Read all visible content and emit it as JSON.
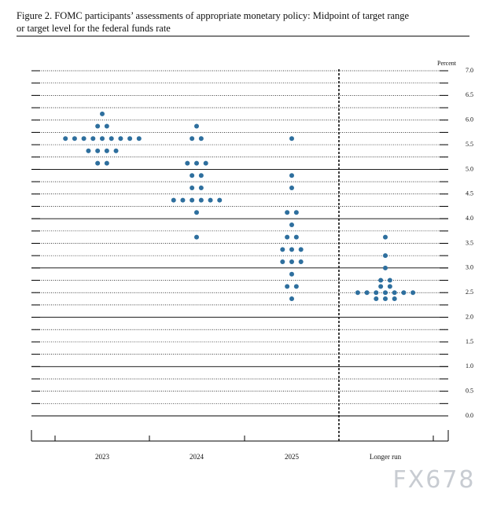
{
  "chart_data": {
    "type": "dot-plot",
    "title_lines": [
      "Figure 2.  FOMC participants’ assessments of appropriate monetary policy:  Midpoint of target range",
      "or target level for the federal funds rate"
    ],
    "y_unit_label": "Percent",
    "categories": [
      "2023",
      "2024",
      "2025",
      "Longer run"
    ],
    "values": [
      [
        6.125,
        5.875,
        5.875,
        5.625,
        5.625,
        5.625,
        5.625,
        5.625,
        5.625,
        5.625,
        5.625,
        5.625,
        5.375,
        5.375,
        5.375,
        5.375,
        5.125,
        5.125
      ],
      [
        5.875,
        5.625,
        5.625,
        5.125,
        5.125,
        5.125,
        4.875,
        4.875,
        4.625,
        4.625,
        4.375,
        4.375,
        4.375,
        4.375,
        4.375,
        4.375,
        4.125,
        3.625
      ],
      [
        5.625,
        4.875,
        4.625,
        4.125,
        4.125,
        3.875,
        3.625,
        3.625,
        3.375,
        3.375,
        3.375,
        3.125,
        3.125,
        3.125,
        2.875,
        2.625,
        2.625,
        2.375
      ],
      [
        3.625,
        3.25,
        3.0,
        2.75,
        2.75,
        2.625,
        2.625,
        2.5,
        2.5,
        2.5,
        2.5,
        2.5,
        2.5,
        2.5,
        2.375,
        2.375,
        2.375
      ]
    ],
    "color": "#2e6f9e",
    "ylim": [
      0,
      7
    ],
    "yticks": [
      {
        "value": 0,
        "label": "0.0"
      },
      {
        "value": 0.5,
        "label": "0.5"
      },
      {
        "value": 1,
        "label": "1.0"
      },
      {
        "value": 1.5,
        "label": "1.5"
      },
      {
        "value": 2,
        "label": "2.0"
      },
      {
        "value": 2.5,
        "label": "2.5"
      },
      {
        "value": 3,
        "label": "3.0"
      },
      {
        "value": 3.5,
        "label": "3.5"
      },
      {
        "value": 4,
        "label": "4.0"
      },
      {
        "value": 4.5,
        "label": "4.5"
      },
      {
        "value": 5,
        "label": "5.0"
      },
      {
        "value": 5.5,
        "label": "5.5"
      },
      {
        "value": 6,
        "label": "6.0"
      },
      {
        "value": 6.5,
        "label": "6.5"
      },
      {
        "value": 7,
        "label": "7.0"
      }
    ],
    "watermark": "FX678"
  }
}
